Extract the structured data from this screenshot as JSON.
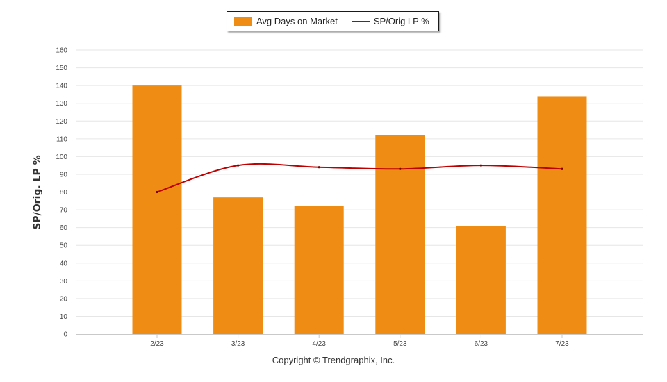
{
  "chart_data": {
    "type": "bar",
    "categories": [
      "2/23",
      "3/23",
      "4/23",
      "5/23",
      "6/23",
      "7/23"
    ],
    "series": [
      {
        "name": "Avg Days on Market",
        "type": "bar",
        "color": "#EF8C14",
        "values": [
          140,
          77,
          72,
          112,
          61,
          134
        ]
      },
      {
        "name": "SP/Orig LP %",
        "type": "line",
        "color": "#C00000",
        "values": [
          80,
          95,
          94,
          93,
          95,
          93
        ]
      }
    ],
    "ylabel": "SP/Orig. LP %",
    "xlabel": "",
    "ylim": [
      0,
      160
    ],
    "yticks": [
      0,
      10,
      20,
      30,
      40,
      50,
      60,
      70,
      80,
      90,
      100,
      110,
      120,
      130,
      140,
      150,
      160
    ],
    "grid": true,
    "legend_position": "top-center"
  },
  "copyright": "Copyright © Trendgraphix, Inc."
}
